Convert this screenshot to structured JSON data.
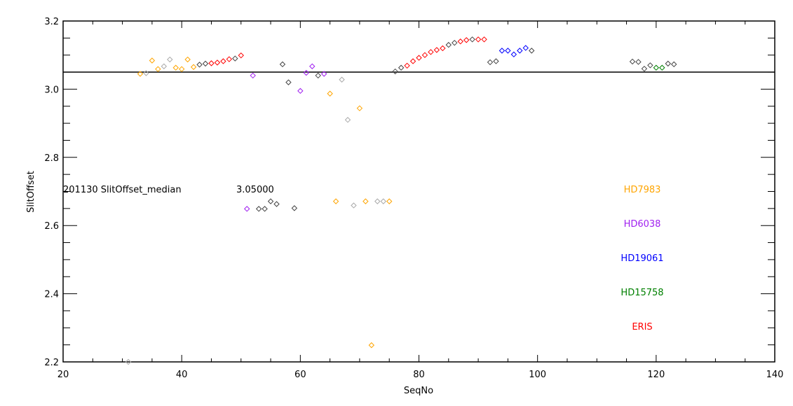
{
  "chart_data": {
    "type": "scatter",
    "title": "",
    "xlabel": "SeqNo",
    "ylabel": "SlitOffset",
    "xlim": [
      20,
      140
    ],
    "ylim": [
      2.2,
      3.2
    ],
    "xticks": [
      "20",
      "40",
      "60",
      "80",
      "100",
      "120",
      "140"
    ],
    "yticks": [
      "2.2",
      "2.4",
      "2.6",
      "2.8",
      "3.0",
      "3.2"
    ],
    "grid": false,
    "median_line": 3.05,
    "annotation": {
      "label": "201130  SlitOffset_median",
      "value": "3.05000"
    },
    "legend": [
      {
        "name": "HD7983",
        "color": "#ffa500"
      },
      {
        "name": "HD6038",
        "color": "#a020f0"
      },
      {
        "name": "HD19061",
        "color": "#0000ff"
      },
      {
        "name": "HD15758",
        "color": "#008000"
      },
      {
        "name": "ERIS",
        "color": "#ff0000"
      }
    ],
    "colors": {
      "HD7983": "#ffa500",
      "HD6038": "#a020f0",
      "HD19061": "#0000ff",
      "HD15758": "#008000",
      "ERIS": "#ff0000",
      "other_dark": "#444444",
      "other_light": "#aaaaaa"
    },
    "points": [
      [
        31,
        2.2,
        "other_light"
      ],
      [
        33,
        3.045,
        "HD7983"
      ],
      [
        34,
        3.047,
        "other_light"
      ],
      [
        35,
        3.084,
        "HD7983"
      ],
      [
        36,
        3.059,
        "HD7983"
      ],
      [
        37,
        3.067,
        "other_light"
      ],
      [
        38,
        3.087,
        "other_light"
      ],
      [
        39,
        3.063,
        "HD7983"
      ],
      [
        40,
        3.059,
        "HD7983"
      ],
      [
        41,
        3.087,
        "HD7983"
      ],
      [
        42,
        3.065,
        "HD7983"
      ],
      [
        43,
        3.072,
        "other_dark"
      ],
      [
        44,
        3.075,
        "other_dark"
      ],
      [
        45,
        3.076,
        "ERIS"
      ],
      [
        46,
        3.078,
        "ERIS"
      ],
      [
        47,
        3.082,
        "ERIS"
      ],
      [
        48,
        3.088,
        "ERIS"
      ],
      [
        49,
        3.09,
        "other_dark"
      ],
      [
        50,
        3.099,
        "ERIS"
      ],
      [
        51,
        2.649,
        "HD6038"
      ],
      [
        52,
        3.04,
        "HD6038"
      ],
      [
        53,
        2.649,
        "other_dark"
      ],
      [
        54,
        2.649,
        "other_dark"
      ],
      [
        55,
        2.671,
        "other_dark"
      ],
      [
        56,
        2.663,
        "other_dark"
      ],
      [
        57,
        3.073,
        "other_dark"
      ],
      [
        58,
        3.02,
        "other_dark"
      ],
      [
        59,
        2.651,
        "other_dark"
      ],
      [
        60,
        2.995,
        "HD6038"
      ],
      [
        61,
        3.048,
        "HD6038"
      ],
      [
        62,
        3.067,
        "HD6038"
      ],
      [
        63,
        3.04,
        "other_dark"
      ],
      [
        64,
        3.045,
        "HD6038"
      ],
      [
        65,
        2.987,
        "HD7983"
      ],
      [
        66,
        2.671,
        "HD7983"
      ],
      [
        67,
        3.028,
        "other_light"
      ],
      [
        68,
        2.91,
        "other_light"
      ],
      [
        69,
        2.659,
        "other_light"
      ],
      [
        70,
        2.944,
        "HD7983"
      ],
      [
        71,
        2.671,
        "HD7983"
      ],
      [
        72,
        2.249,
        "HD7983"
      ],
      [
        73,
        2.671,
        "other_light"
      ],
      [
        74,
        2.671,
        "other_light"
      ],
      [
        75,
        2.671,
        "HD7983"
      ],
      [
        76,
        3.052,
        "other_dark"
      ],
      [
        77,
        3.063,
        "other_dark"
      ],
      [
        78,
        3.069,
        "ERIS"
      ],
      [
        79,
        3.082,
        "ERIS"
      ],
      [
        80,
        3.092,
        "ERIS"
      ],
      [
        81,
        3.1,
        "ERIS"
      ],
      [
        82,
        3.109,
        "ERIS"
      ],
      [
        83,
        3.115,
        "ERIS"
      ],
      [
        84,
        3.12,
        "ERIS"
      ],
      [
        85,
        3.13,
        "other_dark"
      ],
      [
        86,
        3.136,
        "other_dark"
      ],
      [
        87,
        3.14,
        "ERIS"
      ],
      [
        88,
        3.144,
        "ERIS"
      ],
      [
        89,
        3.146,
        "other_dark"
      ],
      [
        90,
        3.146,
        "ERIS"
      ],
      [
        91,
        3.146,
        "ERIS"
      ],
      [
        92,
        3.079,
        "other_dark"
      ],
      [
        93,
        3.082,
        "other_dark"
      ],
      [
        94,
        3.113,
        "HD19061"
      ],
      [
        95,
        3.113,
        "HD19061"
      ],
      [
        96,
        3.102,
        "HD19061"
      ],
      [
        97,
        3.113,
        "HD19061"
      ],
      [
        98,
        3.121,
        "HD19061"
      ],
      [
        99,
        3.113,
        "other_dark"
      ],
      [
        116,
        3.081,
        "other_dark"
      ],
      [
        117,
        3.08,
        "other_dark"
      ],
      [
        118,
        3.06,
        "other_dark"
      ],
      [
        119,
        3.07,
        "other_dark"
      ],
      [
        120,
        3.063,
        "HD15758"
      ],
      [
        121,
        3.063,
        "HD15758"
      ],
      [
        122,
        3.075,
        "other_dark"
      ],
      [
        123,
        3.073,
        "other_dark"
      ]
    ]
  }
}
